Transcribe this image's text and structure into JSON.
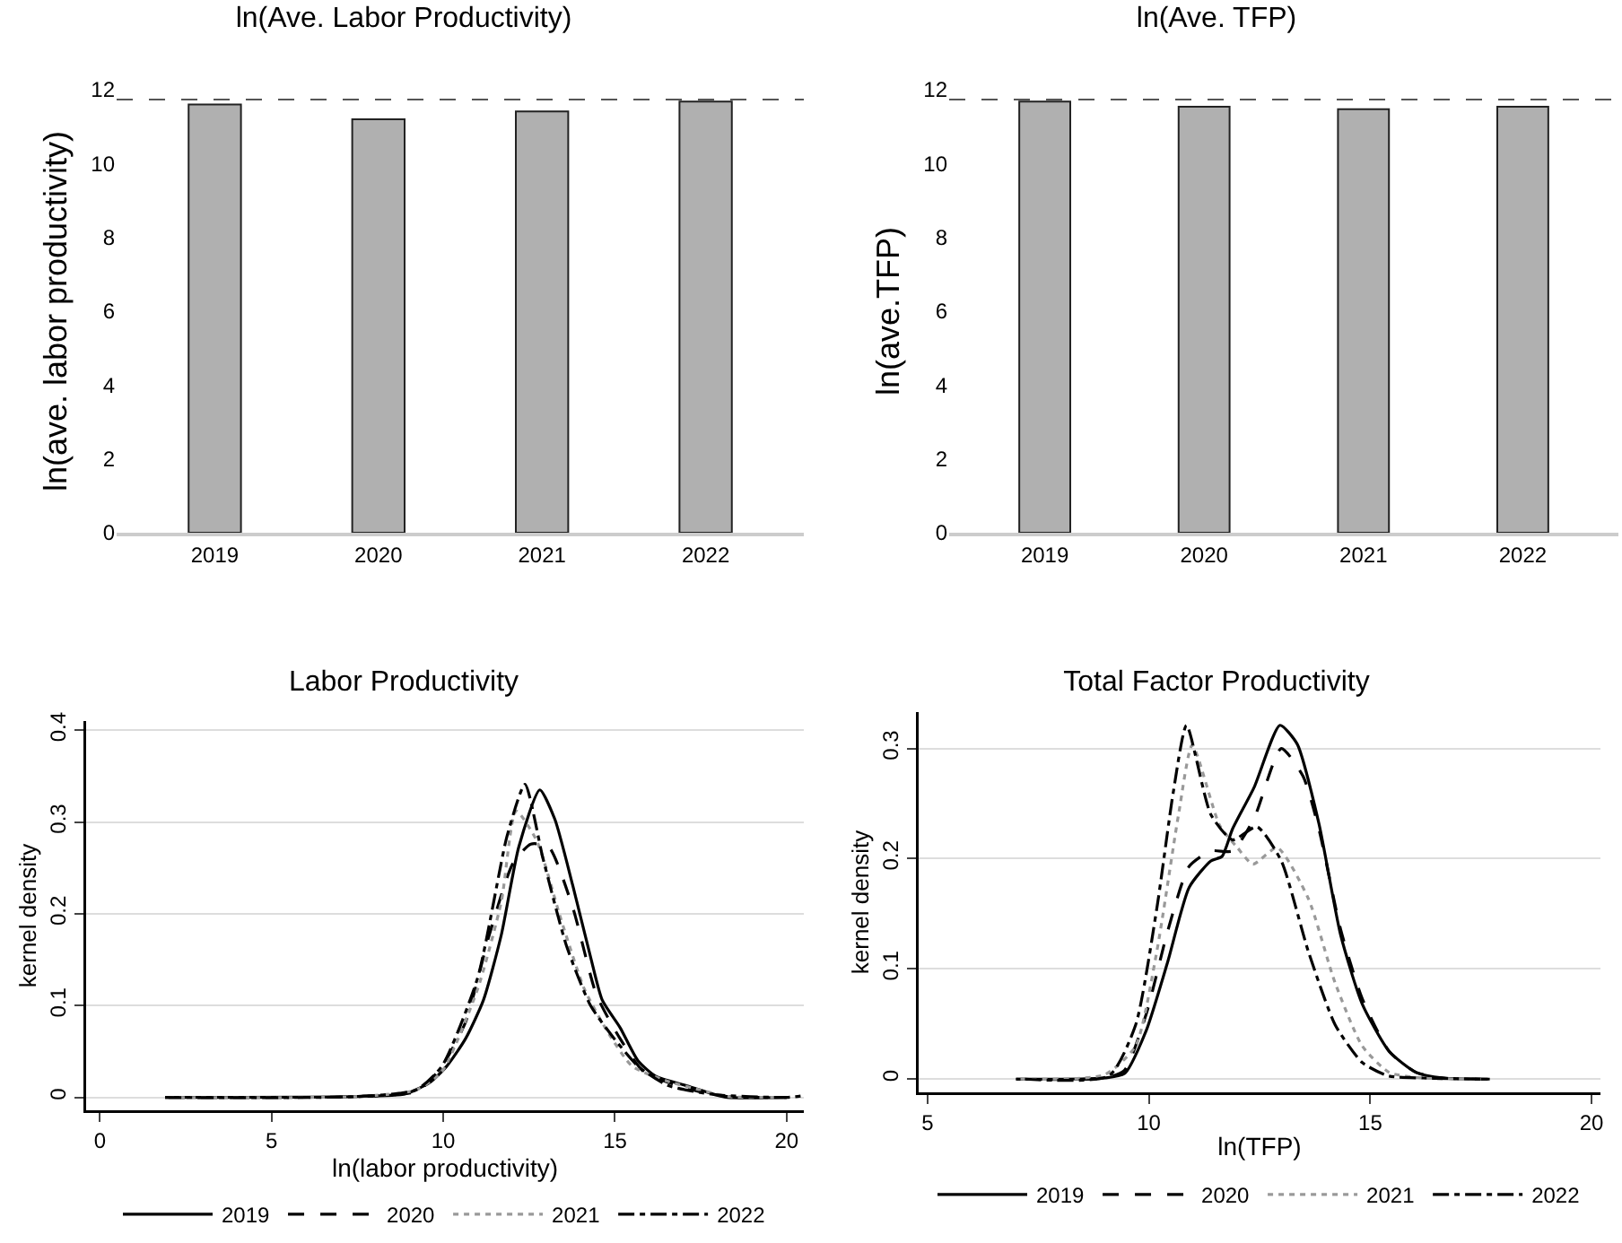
{
  "chart_data": [
    {
      "type": "bar",
      "title": "ln(Ave. Labor Productivity)",
      "ylabel": "ln(ave. labor productivity)",
      "categories": [
        "2019",
        "2020",
        "2021",
        "2022"
      ],
      "values": [
        11.6,
        11.2,
        11.41,
        11.68
      ],
      "color": "#b0b0b0",
      "ylim": [
        0,
        12
      ],
      "yticks": [
        0,
        2,
        4,
        6,
        8,
        10,
        12
      ],
      "grid": false,
      "ref_lines": [
        {
          "axis": "y",
          "value": 11.73,
          "color": "#555555",
          "line_style": "dashed"
        }
      ]
    },
    {
      "type": "bar",
      "title": "ln(Ave. TFP)",
      "ylabel": "ln(ave.TFP)",
      "categories": [
        "2019",
        "2020",
        "2021",
        "2022"
      ],
      "values": [
        11.68,
        11.54,
        11.47,
        11.54
      ],
      "color": "#b0b0b0",
      "ylim": [
        0,
        12
      ],
      "yticks": [
        0,
        2,
        4,
        6,
        8,
        10,
        12
      ],
      "grid": false,
      "ref_lines": [
        {
          "axis": "y",
          "value": 11.73,
          "color": "#555555",
          "line_style": "dashed"
        }
      ]
    },
    {
      "type": "line",
      "title": "Labor Productivity",
      "xlabel": "ln(labor productivity)",
      "ylabel": "kernel density",
      "xlim": [
        -0.4,
        20.5
      ],
      "ylim": [
        -0.014,
        0.41
      ],
      "xticks": [
        0,
        5,
        10,
        15,
        20
      ],
      "yticks": [
        0,
        0.1,
        0.2,
        0.3,
        0.4
      ],
      "grid": "y",
      "legend": "bottom",
      "marker": "none",
      "series": [
        {
          "name": "2019",
          "color": "#000000",
          "line_style": "solid",
          "x": [
            1.9,
            7.5,
            8.9,
            9.6,
            10.1,
            10.65,
            11.17,
            11.69,
            12.2,
            12.81,
            13.25,
            13.77,
            14.29,
            14.63,
            15.15,
            15.67,
            16.19,
            17.06,
            17.92,
            18.27,
            20
          ],
          "values": [
            0,
            0.001,
            0.004,
            0.016,
            0.034,
            0.064,
            0.106,
            0.177,
            0.273,
            0.335,
            0.303,
            0.231,
            0.153,
            0.106,
            0.076,
            0.04,
            0.023,
            0.013,
            0.003,
            0,
            0
          ]
        },
        {
          "name": "2020",
          "color": "#000000",
          "line_style": "dashed",
          "x": [
            2,
            7.5,
            9.26,
            9.96,
            10.65,
            11.34,
            12.03,
            12.55,
            13.07,
            13.77,
            14.46,
            15.15,
            15.84,
            17.06,
            18.27,
            20
          ],
          "values": [
            0,
            0.001,
            0.007,
            0.034,
            0.082,
            0.177,
            0.255,
            0.276,
            0.273,
            0.207,
            0.112,
            0.064,
            0.028,
            0.01,
            0.001,
            0
          ]
        },
        {
          "name": "2021",
          "color": "#999999",
          "line_style": "dotted",
          "x": [
            2,
            7.5,
            9.2,
            9.96,
            11,
            11.69,
            12.12,
            12.73,
            13.42,
            14.11,
            14.81,
            15.5,
            16.5,
            17.5,
            18.3,
            20
          ],
          "values": [
            0,
            0.001,
            0.008,
            0.028,
            0.118,
            0.213,
            0.312,
            0.279,
            0.195,
            0.118,
            0.07,
            0.034,
            0.018,
            0.008,
            0.001,
            0
          ]
        },
        {
          "name": "2022",
          "color": "#000000",
          "line_style": "dashdot",
          "x": [
            1.9,
            7.5,
            9.2,
            9.96,
            11,
            11.86,
            12.38,
            12.9,
            13.59,
            14.29,
            14.98,
            15.67,
            16.54,
            17.92,
            20,
            20.5
          ],
          "values": [
            0,
            0.001,
            0.008,
            0.034,
            0.13,
            0.285,
            0.341,
            0.261,
            0.165,
            0.1,
            0.064,
            0.034,
            0.013,
            0.003,
            0,
            0.002
          ]
        }
      ]
    },
    {
      "type": "line",
      "title": "Total Factor Productivity",
      "xlabel": "ln(TFP)",
      "ylabel": "kernel density",
      "xlim": [
        4.8,
        20.2
      ],
      "ylim": [
        -0.012,
        0.333
      ],
      "xticks": [
        5,
        10,
        15,
        20
      ],
      "yticks": [
        0,
        0.1,
        0.2,
        0.3
      ],
      "grid": "y",
      "legend": "bottom",
      "marker": "none",
      "series": [
        {
          "name": "2019",
          "color": "#000000",
          "line_style": "solid",
          "x": [
            7,
            9,
            9.45,
            9.94,
            10.43,
            10.91,
            11.4,
            11.65,
            11.89,
            12.38,
            12.96,
            13.35,
            13.84,
            14.33,
            14.82,
            15.43,
            16.04,
            16.65,
            17.7
          ],
          "values": [
            0,
            0.001,
            0.005,
            0.044,
            0.107,
            0.174,
            0.198,
            0.202,
            0.227,
            0.265,
            0.321,
            0.304,
            0.232,
            0.131,
            0.068,
            0.025,
            0.006,
            0.001,
            0
          ]
        },
        {
          "name": "2020",
          "color": "#000000",
          "line_style": "dashed",
          "x": [
            7,
            9,
            9.45,
            9.94,
            10.43,
            10.91,
            11.4,
            11.89,
            12.38,
            12.99,
            13.48,
            13.84,
            14.33,
            14.82,
            15.43,
            16.04,
            16.65,
            17.7
          ],
          "values": [
            0,
            0.001,
            0.008,
            0.059,
            0.135,
            0.193,
            0.207,
            0.207,
            0.237,
            0.3,
            0.275,
            0.227,
            0.136,
            0.073,
            0.025,
            0.006,
            0.001,
            0
          ]
        },
        {
          "name": "2021",
          "color": "#999999",
          "line_style": "dotted",
          "x": [
            7.1,
            9,
            9.7,
            10.18,
            10.67,
            10.98,
            11.6,
            12,
            12.35,
            12.9,
            13.6,
            14.2,
            14.82,
            15.43,
            16.2,
            17.5
          ],
          "values": [
            0,
            0.004,
            0.03,
            0.116,
            0.24,
            0.303,
            0.23,
            0.21,
            0.195,
            0.21,
            0.164,
            0.088,
            0.03,
            0.006,
            0.001,
            0
          ]
        },
        {
          "name": "2022",
          "color": "#000000",
          "line_style": "dashdot",
          "x": [
            7.2,
            9.1,
            9.7,
            10.18,
            10.55,
            10.85,
            11.4,
            11.89,
            12.44,
            12.99,
            13.6,
            14.21,
            14.82,
            15.4,
            16.2,
            17.5
          ],
          "values": [
            0,
            0.003,
            0.049,
            0.155,
            0.26,
            0.321,
            0.24,
            0.217,
            0.229,
            0.198,
            0.116,
            0.049,
            0.015,
            0.003,
            0.001,
            0
          ]
        }
      ]
    }
  ]
}
